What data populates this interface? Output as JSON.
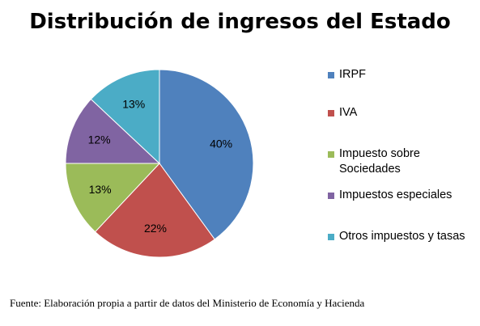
{
  "chart_data": {
    "type": "pie",
    "title": "Distribución de ingresos del Estado",
    "slices": [
      {
        "name": "IRPF",
        "value": 40,
        "label": "40%",
        "color": "#4F81BD"
      },
      {
        "name": "IVA",
        "value": 22,
        "label": "22%",
        "color": "#C0504D"
      },
      {
        "name": "Impuesto sobre Sociedades",
        "value": 13,
        "label": "13%",
        "color": "#9BBB59"
      },
      {
        "name": "Impuestos especiales",
        "value": 12,
        "label": "12%",
        "color": "#8064A2"
      },
      {
        "name": "Otros impuestos y tasas",
        "value": 13,
        "label": "13%",
        "color": "#4BACC6"
      }
    ],
    "legend_position": "right",
    "start_angle": "top, clockwise"
  },
  "legend": {
    "items": [
      {
        "label_lines": [
          "IRPF"
        ]
      },
      {
        "label_lines": [
          "Impuesto sobre",
          "Sociedades"
        ]
      }
    ]
  },
  "source_note": "Fuente: Elaboración propia a partir de datos del Ministerio de Economía y Hacienda"
}
